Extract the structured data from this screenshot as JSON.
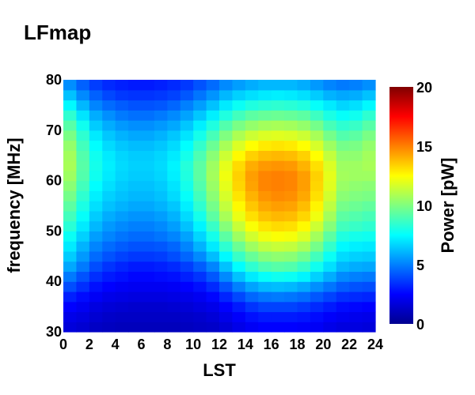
{
  "chart_data": {
    "type": "heatmap",
    "title": "LFmap",
    "xlabel": "LST",
    "ylabel": "frequency [MHz]",
    "colorbar": {
      "label": "Power [pW]",
      "range": [
        0,
        20
      ],
      "ticks": [
        "0",
        "5",
        "10",
        "15",
        "20"
      ],
      "colormap": "jet"
    },
    "xlim": [
      0,
      24
    ],
    "ylim": [
      30,
      80
    ],
    "x_ticks": [
      "0",
      "2",
      "4",
      "6",
      "8",
      "10",
      "12",
      "14",
      "16",
      "18",
      "20",
      "22",
      "24"
    ],
    "y_ticks": [
      "30",
      "40",
      "50",
      "60",
      "70",
      "80"
    ],
    "grid": false,
    "x": [
      0.5,
      1.5,
      2.5,
      3.5,
      4.5,
      5.5,
      6.5,
      7.5,
      8.5,
      9.5,
      10.5,
      11.5,
      12.5,
      13.5,
      14.5,
      15.5,
      16.5,
      17.5,
      18.5,
      19.5,
      20.5,
      21.5,
      22.5,
      23.5
    ],
    "y": [
      31,
      33,
      35,
      37,
      39,
      41,
      43,
      45,
      47,
      49,
      51,
      53,
      55,
      57,
      59,
      61,
      63,
      65,
      67,
      69,
      71,
      73,
      75,
      77,
      79
    ],
    "z": [
      [
        1.7,
        1.5,
        1.2,
        1.1,
        1.0,
        1.0,
        1.0,
        1.0,
        1.0,
        1.1,
        1.2,
        1.3,
        1.6,
        2.0,
        2.3,
        2.5,
        2.5,
        2.5,
        2.4,
        2.3,
        2.0,
        1.8,
        1.8,
        1.7
      ],
      [
        2.0,
        1.8,
        1.5,
        1.3,
        1.2,
        1.2,
        1.2,
        1.2,
        1.2,
        1.3,
        1.4,
        1.6,
        2.0,
        2.4,
        2.8,
        3.0,
        3.0,
        3.0,
        2.9,
        2.7,
        2.4,
        2.2,
        2.1,
        2.0
      ],
      [
        2.5,
        2.2,
        1.8,
        1.6,
        1.5,
        1.4,
        1.4,
        1.4,
        1.5,
        1.6,
        1.8,
        2.0,
        2.5,
        3.0,
        3.5,
        3.8,
        3.8,
        3.8,
        3.6,
        3.3,
        3.0,
        2.7,
        2.6,
        2.5
      ],
      [
        3.1,
        2.7,
        2.3,
        2.0,
        1.9,
        1.8,
        1.8,
        1.8,
        1.9,
        2.0,
        2.2,
        2.6,
        3.2,
        3.9,
        4.5,
        4.8,
        4.9,
        4.8,
        4.6,
        4.2,
        3.8,
        3.4,
        3.3,
        3.2
      ],
      [
        4.0,
        3.4,
        2.8,
        2.5,
        2.3,
        2.2,
        2.2,
        2.2,
        2.3,
        2.5,
        2.8,
        3.3,
        4.1,
        5.0,
        5.7,
        6.1,
        6.2,
        6.1,
        5.8,
        5.3,
        4.8,
        4.3,
        4.1,
        4.0
      ],
      [
        4.9,
        4.1,
        3.4,
        3.0,
        2.8,
        2.6,
        2.6,
        2.7,
        2.8,
        3.1,
        3.5,
        4.2,
        5.2,
        6.3,
        7.1,
        7.6,
        7.8,
        7.7,
        7.3,
        6.6,
        5.9,
        5.2,
        5.0,
        4.9
      ],
      [
        5.8,
        4.9,
        4.0,
        3.5,
        3.2,
        3.0,
        3.0,
        3.1,
        3.3,
        3.7,
        4.3,
        5.1,
        6.3,
        7.5,
        8.4,
        9.0,
        9.2,
        9.1,
        8.6,
        7.8,
        6.9,
        6.1,
        5.9,
        5.8
      ],
      [
        6.5,
        5.5,
        4.6,
        4.1,
        3.8,
        3.6,
        3.6,
        3.7,
        4.0,
        4.5,
        5.2,
        6.2,
        7.4,
        8.6,
        9.5,
        10.1,
        10.3,
        10.2,
        9.7,
        8.8,
        7.7,
        6.8,
        6.6,
        6.5
      ],
      [
        7.1,
        6.0,
        5.1,
        4.6,
        4.3,
        4.1,
        4.1,
        4.2,
        4.5,
        5.1,
        6.0,
        7.1,
        8.4,
        9.6,
        10.6,
        11.2,
        11.4,
        11.3,
        10.8,
        9.8,
        8.5,
        7.4,
        7.2,
        7.1
      ],
      [
        7.7,
        6.6,
        5.6,
        5.1,
        4.8,
        4.6,
        4.6,
        4.8,
        5.1,
        5.7,
        6.7,
        7.9,
        9.3,
        10.6,
        11.6,
        12.2,
        12.4,
        12.3,
        11.8,
        10.7,
        9.3,
        8.1,
        7.9,
        7.8
      ],
      [
        8.3,
        7.1,
        6.1,
        5.5,
        5.2,
        5.0,
        5.0,
        5.2,
        5.6,
        6.3,
        7.3,
        8.6,
        10.1,
        11.4,
        12.4,
        13.0,
        13.2,
        13.1,
        12.6,
        11.5,
        10.1,
        8.8,
        8.6,
        8.4
      ],
      [
        8.8,
        7.6,
        6.5,
        5.9,
        5.6,
        5.4,
        5.4,
        5.6,
        6.0,
        6.8,
        7.9,
        9.3,
        10.8,
        12.1,
        13.1,
        13.7,
        13.9,
        13.8,
        13.3,
        12.2,
        10.7,
        9.3,
        9.1,
        8.9
      ],
      [
        9.3,
        8.0,
        6.9,
        6.3,
        6.0,
        5.8,
        5.8,
        6.0,
        6.4,
        7.2,
        8.4,
        9.8,
        11.3,
        12.6,
        13.6,
        14.2,
        14.4,
        14.3,
        13.8,
        12.7,
        11.2,
        9.8,
        9.6,
        9.4
      ],
      [
        9.8,
        8.4,
        7.2,
        6.6,
        6.3,
        6.1,
        6.1,
        6.3,
        6.8,
        7.6,
        8.8,
        10.2,
        11.7,
        13.0,
        14.0,
        14.6,
        14.8,
        14.7,
        14.2,
        13.1,
        11.6,
        10.2,
        10.0,
        9.9
      ],
      [
        10.2,
        8.8,
        7.5,
        6.9,
        6.5,
        6.3,
        6.3,
        6.5,
        7.0,
        7.9,
        9.1,
        10.5,
        12.0,
        13.3,
        14.3,
        14.9,
        15.0,
        14.9,
        14.4,
        13.3,
        11.9,
        10.5,
        10.3,
        10.2
      ],
      [
        10.6,
        9.1,
        7.8,
        7.1,
        6.7,
        6.5,
        6.5,
        6.7,
        7.2,
        8.1,
        9.3,
        10.7,
        12.2,
        13.4,
        14.4,
        14.9,
        15.0,
        14.9,
        14.4,
        13.4,
        12.0,
        10.7,
        10.6,
        10.6
      ],
      [
        10.8,
        9.2,
        7.9,
        7.2,
        6.8,
        6.6,
        6.6,
        6.8,
        7.3,
        8.2,
        9.3,
        10.6,
        12.0,
        13.2,
        14.1,
        14.5,
        14.6,
        14.5,
        14.0,
        13.1,
        11.8,
        10.6,
        10.6,
        10.8
      ],
      [
        10.7,
        9.1,
        7.8,
        7.1,
        6.7,
        6.5,
        6.5,
        6.7,
        7.1,
        7.9,
        9.0,
        10.2,
        11.5,
        12.6,
        13.4,
        13.8,
        13.9,
        13.8,
        13.4,
        12.5,
        11.3,
        10.3,
        10.3,
        10.7
      ],
      [
        10.4,
        8.8,
        7.5,
        6.8,
        6.4,
        6.2,
        6.2,
        6.4,
        6.8,
        7.5,
        8.5,
        9.6,
        10.8,
        11.8,
        12.5,
        12.9,
        13.0,
        12.9,
        12.5,
        11.7,
        10.6,
        9.8,
        9.9,
        10.4
      ],
      [
        9.9,
        8.4,
        7.1,
        6.4,
        6.0,
        5.8,
        5.8,
        6.0,
        6.4,
        7.0,
        7.9,
        8.9,
        10.0,
        10.9,
        11.5,
        11.8,
        11.9,
        11.8,
        11.5,
        10.8,
        9.8,
        9.1,
        9.3,
        9.9
      ],
      [
        9.2,
        7.8,
        6.5,
        5.9,
        5.5,
        5.3,
        5.3,
        5.5,
        5.8,
        6.4,
        7.2,
        8.1,
        9.1,
        9.9,
        10.4,
        10.7,
        10.8,
        10.7,
        10.4,
        9.8,
        8.9,
        8.4,
        8.6,
        9.2
      ],
      [
        8.4,
        7.0,
        5.9,
        5.3,
        4.9,
        4.7,
        4.7,
        4.9,
        5.2,
        5.7,
        6.4,
        7.2,
        8.1,
        8.8,
        9.3,
        9.5,
        9.6,
        9.5,
        9.3,
        8.7,
        8.0,
        7.6,
        7.8,
        8.4
      ],
      [
        7.4,
        6.1,
        5.1,
        4.6,
        4.3,
        4.1,
        4.1,
        4.2,
        4.5,
        5.0,
        5.6,
        6.3,
        7.1,
        7.7,
        8.1,
        8.3,
        8.4,
        8.3,
        8.1,
        7.6,
        7.1,
        6.7,
        6.9,
        7.4
      ],
      [
        6.3,
        5.2,
        4.4,
        3.9,
        3.6,
        3.5,
        3.5,
        3.6,
        3.8,
        4.2,
        4.8,
        5.4,
        6.1,
        6.6,
        6.9,
        7.1,
        7.2,
        7.1,
        6.9,
        6.5,
        6.0,
        5.8,
        5.9,
        6.3
      ],
      [
        5.3,
        4.4,
        3.7,
        3.3,
        3.1,
        3.0,
        3.0,
        3.1,
        3.3,
        3.6,
        4.1,
        4.6,
        5.2,
        5.6,
        5.9,
        6.1,
        6.1,
        6.1,
        5.9,
        5.5,
        5.1,
        4.9,
        5.0,
        5.3
      ]
    ]
  }
}
